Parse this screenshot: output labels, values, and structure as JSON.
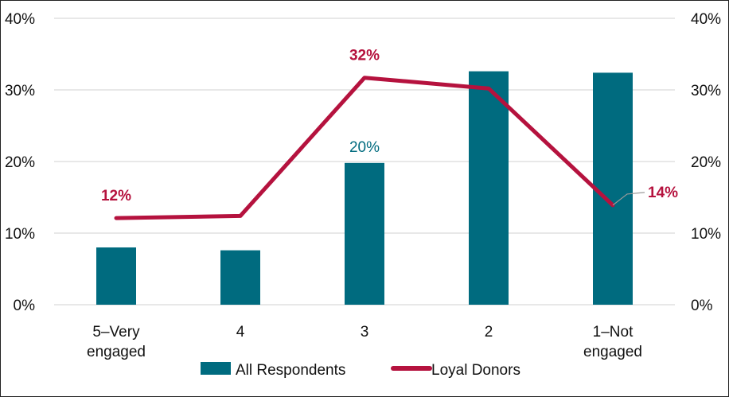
{
  "chart_data": {
    "type": "bar",
    "categories": [
      [
        "5–Very",
        "engaged"
      ],
      [
        "4"
      ],
      [
        "3"
      ],
      [
        "2"
      ],
      [
        "1–Not",
        "engaged"
      ]
    ],
    "series": [
      {
        "name": "All Respondents",
        "type": "bar",
        "color": "#006b7f",
        "values": [
          8,
          7.6,
          19.8,
          32.6,
          32.4
        ],
        "labels": [
          "",
          "",
          "20%",
          "",
          ""
        ]
      },
      {
        "name": "Loyal Donors",
        "type": "line",
        "color": "#b5123e",
        "values": [
          12.1,
          12.4,
          31.7,
          30.2,
          13.9
        ],
        "labels": [
          "12%",
          "",
          "32%",
          "",
          "14%"
        ]
      }
    ],
    "ylim": [
      0,
      40
    ],
    "yticks": [
      "0%",
      "10%",
      "20%",
      "30%",
      "40%"
    ],
    "secondary_yticks": [
      "0%",
      "10%",
      "20%",
      "30%",
      "40%"
    ],
    "grid": true,
    "legend": "bottom"
  }
}
